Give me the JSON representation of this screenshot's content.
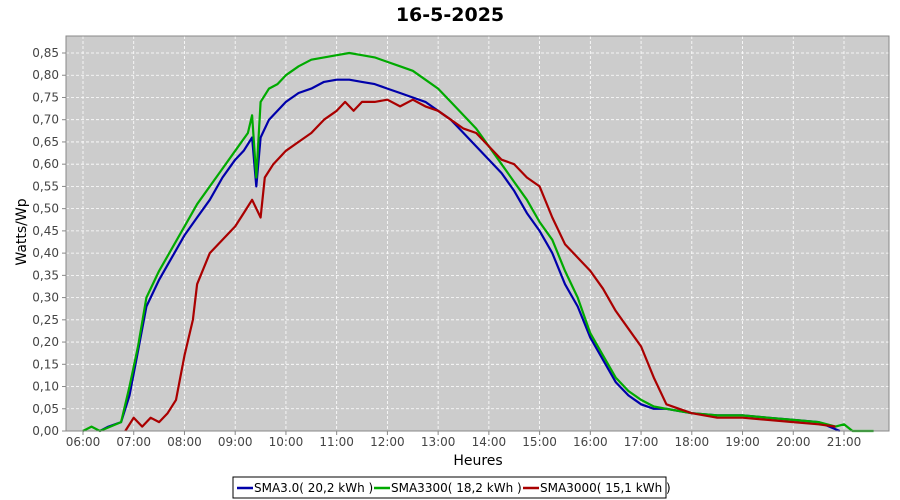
{
  "chart_data": {
    "type": "line",
    "title": "16-5-2025",
    "xlabel": "Heures",
    "ylabel": "Watts/Wp",
    "xlim": [
      "06:00",
      "21:00"
    ],
    "ylim": [
      0,
      0.85
    ],
    "grid": true,
    "legend_position": "bottom",
    "x_ticks": [
      "06:00",
      "07:00",
      "08:00",
      "09:00",
      "10:00",
      "11:00",
      "12:00",
      "13:00",
      "14:00",
      "15:00",
      "16:00",
      "17:00",
      "18:00",
      "19:00",
      "20:00",
      "21:00"
    ],
    "y_ticks": [
      "0,00",
      "0,05",
      "0,10",
      "0,15",
      "0,20",
      "0,25",
      "0,30",
      "0,35",
      "0,40",
      "0,45",
      "0,50",
      "0,55",
      "0,60",
      "0,65",
      "0,70",
      "0,75",
      "0,80",
      "0,85"
    ],
    "series": [
      {
        "name": "SMA3.0( 20,2 kWh )",
        "color": "#0000aa",
        "points": [
          [
            "06:20",
            0.0
          ],
          [
            "06:30",
            0.01
          ],
          [
            "06:45",
            0.02
          ],
          [
            "06:55",
            0.08
          ],
          [
            "07:05",
            0.18
          ],
          [
            "07:15",
            0.28
          ],
          [
            "07:30",
            0.34
          ],
          [
            "07:45",
            0.39
          ],
          [
            "08:00",
            0.44
          ],
          [
            "08:15",
            0.48
          ],
          [
            "08:30",
            0.52
          ],
          [
            "08:45",
            0.57
          ],
          [
            "09:00",
            0.61
          ],
          [
            "09:10",
            0.63
          ],
          [
            "09:20",
            0.66
          ],
          [
            "09:25",
            0.55
          ],
          [
            "09:30",
            0.66
          ],
          [
            "09:40",
            0.7
          ],
          [
            "09:50",
            0.72
          ],
          [
            "10:00",
            0.74
          ],
          [
            "10:15",
            0.76
          ],
          [
            "10:30",
            0.77
          ],
          [
            "10:45",
            0.785
          ],
          [
            "11:00",
            0.79
          ],
          [
            "11:15",
            0.79
          ],
          [
            "11:30",
            0.785
          ],
          [
            "11:45",
            0.78
          ],
          [
            "12:00",
            0.77
          ],
          [
            "12:15",
            0.76
          ],
          [
            "12:30",
            0.75
          ],
          [
            "12:45",
            0.74
          ],
          [
            "13:00",
            0.72
          ],
          [
            "13:15",
            0.7
          ],
          [
            "13:30",
            0.67
          ],
          [
            "13:45",
            0.64
          ],
          [
            "14:00",
            0.61
          ],
          [
            "14:15",
            0.58
          ],
          [
            "14:30",
            0.54
          ],
          [
            "14:45",
            0.49
          ],
          [
            "15:00",
            0.45
          ],
          [
            "15:15",
            0.4
          ],
          [
            "15:30",
            0.33
          ],
          [
            "15:45",
            0.28
          ],
          [
            "16:00",
            0.21
          ],
          [
            "16:15",
            0.16
          ],
          [
            "16:30",
            0.11
          ],
          [
            "16:45",
            0.08
          ],
          [
            "17:00",
            0.06
          ],
          [
            "17:15",
            0.05
          ],
          [
            "17:30",
            0.05
          ],
          [
            "17:45",
            0.045
          ],
          [
            "18:00",
            0.04
          ],
          [
            "18:30",
            0.035
          ],
          [
            "19:00",
            0.035
          ],
          [
            "19:30",
            0.03
          ],
          [
            "20:00",
            0.025
          ],
          [
            "20:30",
            0.02
          ],
          [
            "20:55",
            0.0
          ]
        ]
      },
      {
        "name": "SMA3300( 18,2 kWh )",
        "color": "#00aa00",
        "points": [
          [
            "06:00",
            0.0
          ],
          [
            "06:10",
            0.01
          ],
          [
            "06:20",
            0.0
          ],
          [
            "06:45",
            0.02
          ],
          [
            "06:55",
            0.1
          ],
          [
            "07:05",
            0.19
          ],
          [
            "07:15",
            0.3
          ],
          [
            "07:30",
            0.36
          ],
          [
            "07:45",
            0.41
          ],
          [
            "08:00",
            0.46
          ],
          [
            "08:15",
            0.51
          ],
          [
            "08:30",
            0.55
          ],
          [
            "08:45",
            0.59
          ],
          [
            "09:00",
            0.63
          ],
          [
            "09:15",
            0.67
          ],
          [
            "09:20",
            0.71
          ],
          [
            "09:25",
            0.57
          ],
          [
            "09:30",
            0.74
          ],
          [
            "09:40",
            0.77
          ],
          [
            "09:50",
            0.78
          ],
          [
            "10:00",
            0.8
          ],
          [
            "10:15",
            0.82
          ],
          [
            "10:30",
            0.835
          ],
          [
            "10:45",
            0.84
          ],
          [
            "11:00",
            0.845
          ],
          [
            "11:15",
            0.85
          ],
          [
            "11:30",
            0.845
          ],
          [
            "11:45",
            0.84
          ],
          [
            "12:00",
            0.83
          ],
          [
            "12:15",
            0.82
          ],
          [
            "12:30",
            0.81
          ],
          [
            "12:45",
            0.79
          ],
          [
            "13:00",
            0.77
          ],
          [
            "13:15",
            0.74
          ],
          [
            "13:30",
            0.71
          ],
          [
            "13:45",
            0.68
          ],
          [
            "14:00",
            0.64
          ],
          [
            "14:15",
            0.6
          ],
          [
            "14:30",
            0.56
          ],
          [
            "14:45",
            0.52
          ],
          [
            "15:00",
            0.47
          ],
          [
            "15:15",
            0.43
          ],
          [
            "15:30",
            0.36
          ],
          [
            "15:45",
            0.3
          ],
          [
            "16:00",
            0.22
          ],
          [
            "16:15",
            0.17
          ],
          [
            "16:30",
            0.12
          ],
          [
            "16:45",
            0.09
          ],
          [
            "17:00",
            0.07
          ],
          [
            "17:15",
            0.055
          ],
          [
            "17:30",
            0.05
          ],
          [
            "17:45",
            0.045
          ],
          [
            "18:00",
            0.04
          ],
          [
            "18:30",
            0.035
          ],
          [
            "19:00",
            0.035
          ],
          [
            "19:30",
            0.03
          ],
          [
            "20:00",
            0.025
          ],
          [
            "20:30",
            0.02
          ],
          [
            "20:50",
            0.01
          ],
          [
            "21:00",
            0.015
          ],
          [
            "21:10",
            0.0
          ],
          [
            "21:35",
            0.0
          ]
        ]
      },
      {
        "name": "SMA3000( 15,1 kWh )",
        "color": "#aa0000",
        "points": [
          [
            "06:50",
            0.0
          ],
          [
            "07:00",
            0.03
          ],
          [
            "07:10",
            0.01
          ],
          [
            "07:20",
            0.03
          ],
          [
            "07:30",
            0.02
          ],
          [
            "07:40",
            0.04
          ],
          [
            "07:50",
            0.07
          ],
          [
            "08:00",
            0.17
          ],
          [
            "08:10",
            0.25
          ],
          [
            "08:15",
            0.33
          ],
          [
            "08:30",
            0.4
          ],
          [
            "08:45",
            0.43
          ],
          [
            "09:00",
            0.46
          ],
          [
            "09:10",
            0.49
          ],
          [
            "09:20",
            0.52
          ],
          [
            "09:30",
            0.48
          ],
          [
            "09:35",
            0.57
          ],
          [
            "09:45",
            0.6
          ],
          [
            "10:00",
            0.63
          ],
          [
            "10:15",
            0.65
          ],
          [
            "10:30",
            0.67
          ],
          [
            "10:45",
            0.7
          ],
          [
            "11:00",
            0.72
          ],
          [
            "11:10",
            0.74
          ],
          [
            "11:20",
            0.72
          ],
          [
            "11:30",
            0.74
          ],
          [
            "11:45",
            0.74
          ],
          [
            "12:00",
            0.745
          ],
          [
            "12:15",
            0.73
          ],
          [
            "12:30",
            0.745
          ],
          [
            "12:45",
            0.73
          ],
          [
            "13:00",
            0.72
          ],
          [
            "13:15",
            0.7
          ],
          [
            "13:30",
            0.68
          ],
          [
            "13:45",
            0.67
          ],
          [
            "14:00",
            0.64
          ],
          [
            "14:15",
            0.61
          ],
          [
            "14:30",
            0.6
          ],
          [
            "14:45",
            0.57
          ],
          [
            "15:00",
            0.55
          ],
          [
            "15:15",
            0.48
          ],
          [
            "15:30",
            0.42
          ],
          [
            "15:45",
            0.39
          ],
          [
            "16:00",
            0.36
          ],
          [
            "16:15",
            0.32
          ],
          [
            "16:30",
            0.27
          ],
          [
            "16:45",
            0.23
          ],
          [
            "17:00",
            0.19
          ],
          [
            "17:15",
            0.12
          ],
          [
            "17:30",
            0.06
          ],
          [
            "17:45",
            0.05
          ],
          [
            "18:00",
            0.04
          ],
          [
            "18:30",
            0.03
          ],
          [
            "19:00",
            0.03
          ],
          [
            "19:30",
            0.025
          ],
          [
            "20:00",
            0.02
          ],
          [
            "20:30",
            0.015
          ],
          [
            "20:50",
            0.01
          ]
        ]
      }
    ]
  }
}
